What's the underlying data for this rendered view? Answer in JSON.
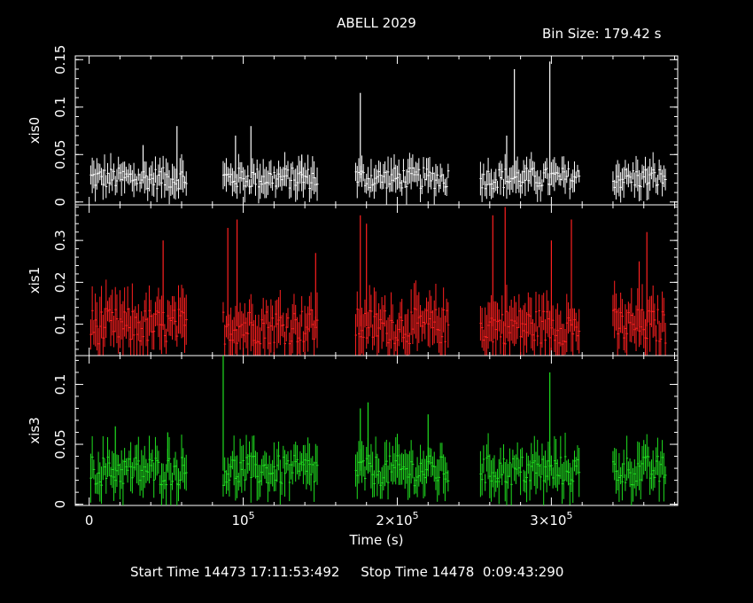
{
  "chart_data": {
    "type": "line",
    "title": "ABELL 2029",
    "subtitle": "Bin Size: 179.42 s",
    "xlabel": "Time (s)",
    "xlim": [
      -9000,
      382000
    ],
    "x_ticks": [
      {
        "value": 0,
        "label": "0"
      },
      {
        "value": 100000,
        "label": "10",
        "sup": "5"
      },
      {
        "value": 200000,
        "label": "2×10",
        "sup": "5"
      },
      {
        "value": 300000,
        "label": "3×10",
        "sup": "5"
      }
    ],
    "panels": [
      {
        "name": "xis0",
        "ylabel": "xis0",
        "color": "#ffffff",
        "ylim": [
          -0.003,
          0.154
        ],
        "y_ticks": [
          {
            "value": 0,
            "label": "0"
          },
          {
            "value": 0.05,
            "label": "0.05"
          },
          {
            "value": 0.1,
            "label": "0.1"
          },
          {
            "value": 0.15,
            "label": "0.15"
          }
        ],
        "typical_rate": 0.025,
        "segments": [
          [
            1000,
            63000
          ],
          [
            87000,
            148000
          ],
          [
            173000,
            233000
          ],
          [
            254000,
            318000
          ],
          [
            340000,
            374000
          ]
        ],
        "spikes": [
          [
            57000,
            0.08
          ],
          [
            95000,
            0.07
          ],
          [
            105000,
            0.08
          ],
          [
            176000,
            0.115
          ],
          [
            276000,
            0.14
          ],
          [
            271000,
            0.07
          ],
          [
            299000,
            0.148
          ],
          [
            35000,
            0.06
          ],
          [
            138000,
            0.05
          ]
        ]
      },
      {
        "name": "xis1",
        "ylabel": "xis1",
        "color": "#ff2020",
        "ylim": [
          0.025,
          0.385
        ],
        "y_ticks": [
          {
            "value": 0.1,
            "label": "0.1"
          },
          {
            "value": 0.2,
            "label": "0.2"
          },
          {
            "value": 0.3,
            "label": "0.3"
          }
        ],
        "typical_rate": 0.095,
        "segments": [
          [
            1000,
            63000
          ],
          [
            87000,
            148000
          ],
          [
            173000,
            233000
          ],
          [
            254000,
            318000
          ],
          [
            340000,
            374000
          ]
        ],
        "spikes": [
          [
            48000,
            0.3
          ],
          [
            90000,
            0.33
          ],
          [
            96000,
            0.35
          ],
          [
            147000,
            0.27
          ],
          [
            176000,
            0.36
          ],
          [
            180000,
            0.34
          ],
          [
            262000,
            0.36
          ],
          [
            270000,
            0.38
          ],
          [
            300000,
            0.3
          ],
          [
            313000,
            0.35
          ],
          [
            362000,
            0.32
          ],
          [
            357000,
            0.25
          ]
        ]
      },
      {
        "name": "xis3",
        "ylabel": "xis3",
        "color": "#20e020",
        "ylim": [
          -0.001,
          0.124
        ],
        "y_ticks": [
          {
            "value": 0,
            "label": "0"
          },
          {
            "value": 0.05,
            "label": "0.05"
          },
          {
            "value": 0.1,
            "label": "0.1"
          }
        ],
        "typical_rate": 0.028,
        "segments": [
          [
            1000,
            63000
          ],
          [
            87000,
            148000
          ],
          [
            173000,
            233000
          ],
          [
            254000,
            318000
          ],
          [
            340000,
            374000
          ]
        ],
        "spikes": [
          [
            87000,
            0.125
          ],
          [
            176000,
            0.08
          ],
          [
            181000,
            0.085
          ],
          [
            220000,
            0.075
          ],
          [
            299000,
            0.11
          ],
          [
            17000,
            0.065
          ],
          [
            51000,
            0.06
          ]
        ]
      }
    ]
  },
  "footer": {
    "text": "Start Time 14473 17:11:53:492     Stop Time 14478  0:09:43:290"
  }
}
